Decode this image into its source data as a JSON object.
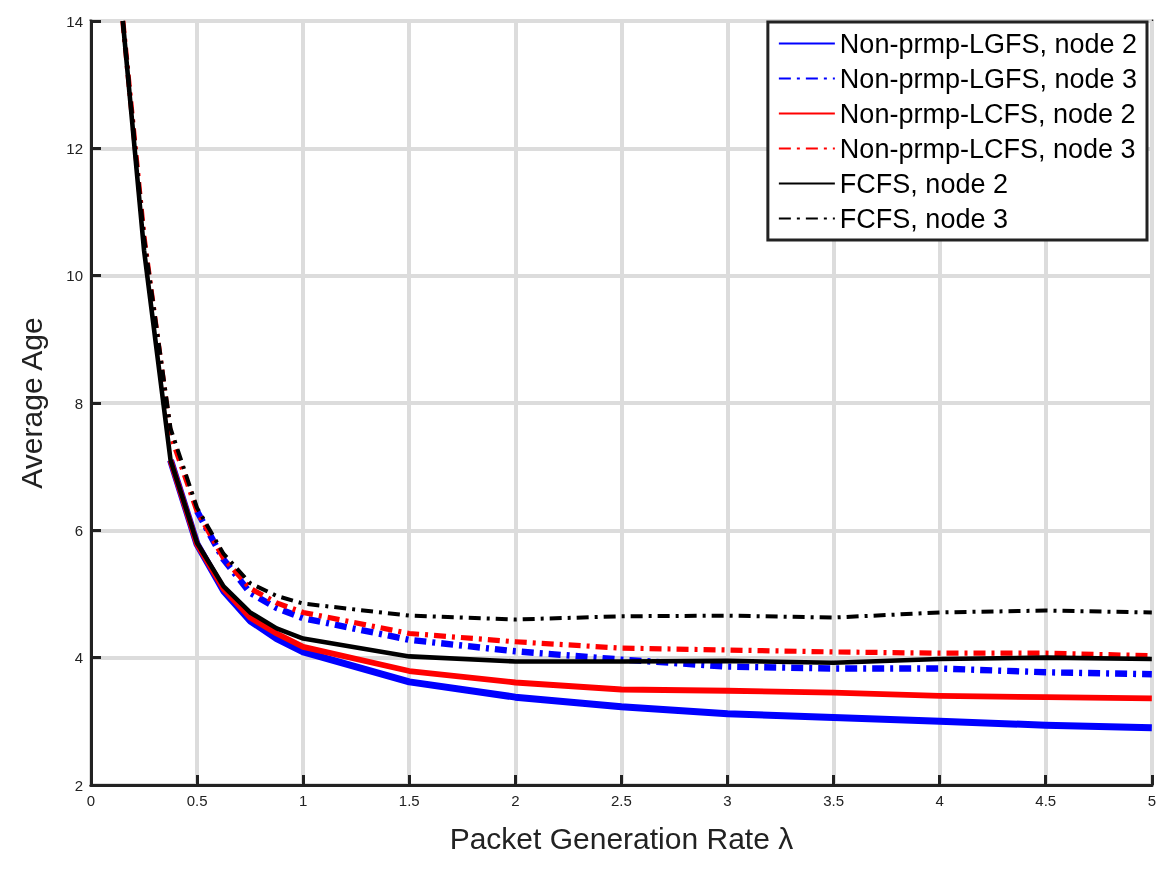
{
  "chart_data": {
    "type": "line",
    "xlabel": "Packet Generation Rate λ",
    "ylabel": "Average Age",
    "x": [
      0.15,
      0.25,
      0.375,
      0.5,
      0.625,
      0.75,
      0.875,
      1,
      1.5,
      2,
      2.5,
      3,
      3.5,
      4,
      4.5,
      5
    ],
    "xlim": [
      0,
      5
    ],
    "xticks": [
      0,
      0.5,
      1,
      1.5,
      2,
      2.5,
      3,
      3.5,
      4,
      4.5,
      5
    ],
    "ylim": [
      2,
      14
    ],
    "yticks": [
      2,
      4,
      6,
      8,
      10,
      12,
      14
    ],
    "grid": true,
    "legend": "top right",
    "series": [
      {
        "name": "Non-prmp-LGFS, node 2",
        "color": "#0000ff",
        "line_style": "solid",
        "values": [
          null,
          null,
          7.1,
          5.78,
          5.05,
          4.58,
          4.3,
          4.09,
          3.62,
          3.38,
          3.23,
          3.12,
          3.06,
          3.0,
          2.94,
          2.9
        ]
      },
      {
        "name": "Non-prmp-LGFS, node 3",
        "color": "#0000ff",
        "line_style": "dashed",
        "values": [
          null,
          null,
          null,
          6.3,
          5.54,
          5.02,
          4.78,
          4.62,
          4.28,
          4.1,
          3.97,
          3.86,
          3.83,
          3.83,
          3.77,
          3.74
        ]
      },
      {
        "name": "Non-prmp-LCFS, node 2",
        "color": "#ff0000",
        "line_style": "solid",
        "values": [
          null,
          null,
          7.1,
          5.78,
          5.08,
          4.63,
          4.38,
          4.17,
          3.79,
          3.61,
          3.5,
          3.48,
          3.45,
          3.4,
          3.38,
          3.36
        ]
      },
      {
        "name": "Non-prmp-LCFS, node 3",
        "color": "#ff0000",
        "line_style": "dashed",
        "values": [
          14,
          10.6,
          7.5,
          6.3,
          5.56,
          5.09,
          4.86,
          4.71,
          4.38,
          4.25,
          4.15,
          4.12,
          4.09,
          4.07,
          4.07,
          4.03
        ]
      },
      {
        "name": "FCFS, node 2",
        "color": "#000000",
        "line_style": "solid",
        "values": [
          14,
          10.4,
          7.1,
          5.8,
          5.12,
          4.71,
          4.46,
          4.3,
          4.02,
          3.94,
          3.94,
          3.95,
          3.92,
          3.98,
          4.0,
          3.98
        ]
      },
      {
        "name": "FCFS, node 3",
        "color": "#000000",
        "line_style": "dashed",
        "values": [
          14,
          10.6,
          7.6,
          6.35,
          5.63,
          5.17,
          4.97,
          4.85,
          4.66,
          4.6,
          4.65,
          4.66,
          4.63,
          4.71,
          4.74,
          4.71
        ]
      }
    ]
  }
}
